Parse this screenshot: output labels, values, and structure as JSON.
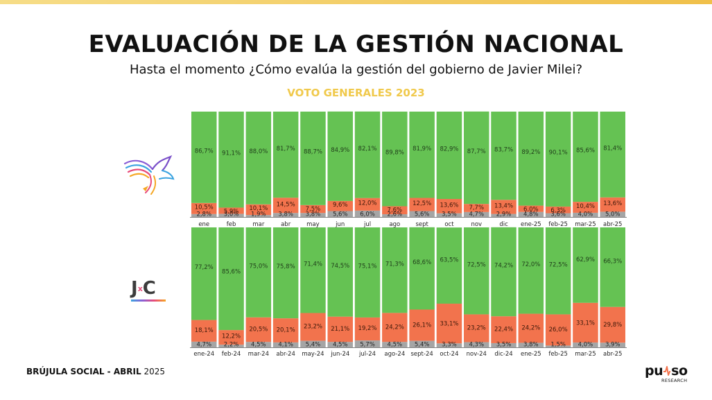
{
  "header": {
    "title": "EVALUACIÓN DE LA GESTIÓN NACIONAL",
    "subtitle": "Hasta el momento ¿Cómo evalúa la gestión del gobierno de Javier Milei?",
    "section": "VOTO GENERALES 2023"
  },
  "footer": {
    "label_bold": "BRÚJULA SOCIAL - ABRIL",
    "label_year": "2025"
  },
  "logo": {
    "word_a": "pu",
    "word_b": "so",
    "sub": "RESEARCH"
  },
  "parties": {
    "jxc_j": "J",
    "jxc_x": "x",
    "jxc_c": "C"
  },
  "colors": {
    "green": "#65c253",
    "orange": "#f2734d",
    "gray": "#a5a5a5",
    "accent": "#f0c94b"
  },
  "chart_data": [
    {
      "type": "bar",
      "stacked": true,
      "panel": "La Libertad Avanza (logo)",
      "categories": [
        "ene",
        "feb",
        "mar",
        "abr",
        "may",
        "jun",
        "jul",
        "ago",
        "sept",
        "oct",
        "nov",
        "dic",
        "ene-25",
        "feb-25",
        "mar-25",
        "abr-25"
      ],
      "series": [
        {
          "color": "#65c253",
          "values": [
            86.7,
            91.1,
            88.0,
            81.7,
            88.7,
            84.9,
            82.1,
            89.8,
            81.9,
            82.9,
            87.7,
            83.7,
            89.2,
            90.1,
            85.6,
            81.4
          ]
        },
        {
          "color": "#f2734d",
          "values": [
            10.5,
            5.9,
            10.1,
            14.5,
            7.5,
            9.6,
            12.0,
            7.6,
            12.5,
            13.6,
            7.7,
            13.4,
            6.0,
            6.3,
            10.4,
            13.6
          ]
        },
        {
          "color": "#a5a5a5",
          "values": [
            2.8,
            3.0,
            1.9,
            3.8,
            3.8,
            5.6,
            6.0,
            2.6,
            5.6,
            3.5,
            4.7,
            2.9,
            4.8,
            3.6,
            4.0,
            5.0
          ]
        }
      ],
      "labels": {
        "green": [
          "86,7%",
          "91,1%",
          "88,0%",
          "81,7%",
          "88,7%",
          "84,9%",
          "82,1%",
          "89,8%",
          "81,9%",
          "82,9%",
          "87,7%",
          "83,7%",
          "89,2%",
          "90,1%",
          "85,6%",
          "81,4%"
        ],
        "orange": [
          "10,5%",
          "5,9%",
          "10,1%",
          "14,5%",
          "7,5%",
          "9,6%",
          "12,0%",
          "7,6%",
          "12,5%",
          "13,6%",
          "7,7%",
          "13,4%",
          "6,0%",
          "6,3%",
          "10,4%",
          "13,6%"
        ],
        "gray": [
          "2,8%",
          "3,0%",
          "1,9%",
          "3,8%",
          "3,8%",
          "5,6%",
          "6,0%",
          "2,6%",
          "5,6%",
          "3,5%",
          "4,7%",
          "2,9%",
          "4,8%",
          "3,6%",
          "4,0%",
          "5,0%"
        ]
      },
      "ylim": [
        0,
        100
      ]
    },
    {
      "type": "bar",
      "stacked": true,
      "panel": "JxC",
      "categories": [
        "ene-24",
        "feb-24",
        "mar-24",
        "abr-24",
        "may-24",
        "jun-24",
        "jul-24",
        "ago-24",
        "sept-24",
        "oct-24",
        "nov-24",
        "dic-24",
        "ene-25",
        "feb-25",
        "mar-25",
        "abr-25"
      ],
      "series": [
        {
          "color": "#65c253",
          "values": [
            77.2,
            85.6,
            75.0,
            75.8,
            71.4,
            74.5,
            75.1,
            71.3,
            68.6,
            63.5,
            72.5,
            74.2,
            72.0,
            72.5,
            62.9,
            66.3
          ]
        },
        {
          "color": "#f2734d",
          "values": [
            18.1,
            12.2,
            20.5,
            20.1,
            23.2,
            21.1,
            19.2,
            24.2,
            26.1,
            33.1,
            23.2,
            22.4,
            24.2,
            26.0,
            33.1,
            29.8
          ]
        },
        {
          "color": "#a5a5a5",
          "values": [
            4.7,
            2.2,
            4.5,
            4.1,
            5.4,
            4.5,
            5.7,
            4.5,
            5.4,
            3.3,
            4.3,
            3.5,
            3.8,
            1.5,
            4.0,
            3.9
          ]
        }
      ],
      "labels": {
        "green": [
          "77,2%",
          "85,6%",
          "75,0%",
          "75,8%",
          "71,4%",
          "74,5%",
          "75,1%",
          "71,3%",
          "68,6%",
          "63,5%",
          "72,5%",
          "74,2%",
          "72,0%",
          "72,5%",
          "62,9%",
          "66,3%"
        ],
        "orange": [
          "18,1%",
          "12,2%",
          "20,5%",
          "20,1%",
          "23,2%",
          "21,1%",
          "19,2%",
          "24,2%",
          "26,1%",
          "33,1%",
          "23,2%",
          "22,4%",
          "24,2%",
          "26,0%",
          "33,1%",
          "29,8%"
        ],
        "gray": [
          "4,7%",
          "2,2%",
          "4,5%",
          "4,1%",
          "5,4%",
          "4,5%",
          "5,7%",
          "4,5%",
          "5,4%",
          "3,3%",
          "4,3%",
          "3,5%",
          "3,8%",
          "1,5%",
          "4,0%",
          "3,9%"
        ]
      },
      "ylim": [
        0,
        100
      ]
    }
  ]
}
